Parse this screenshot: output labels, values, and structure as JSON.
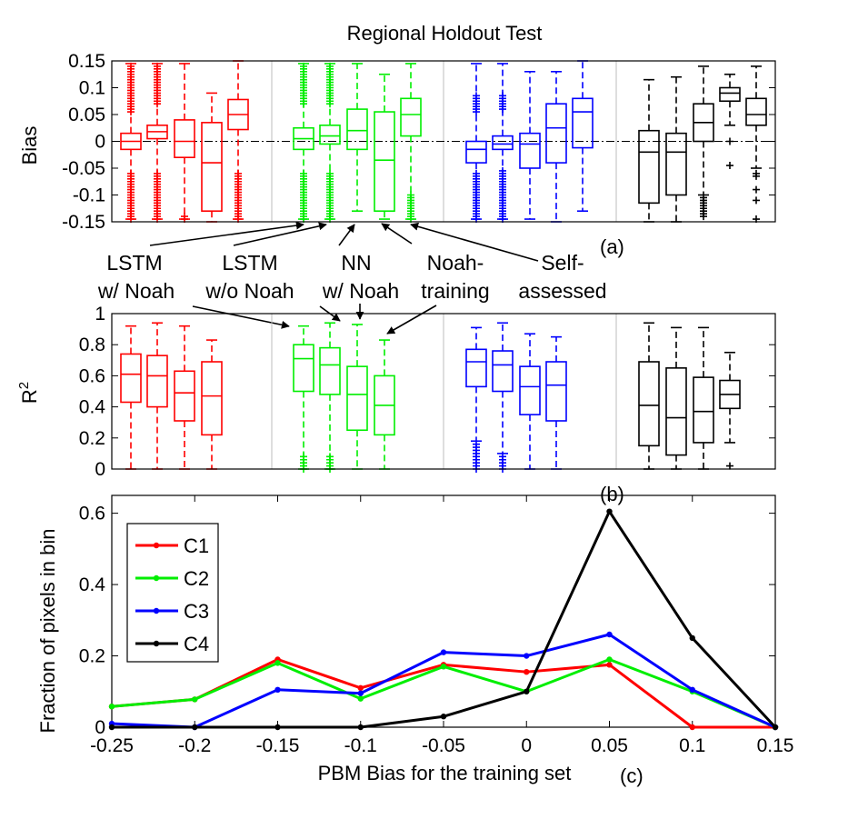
{
  "chart_data": [
    {
      "type": "box",
      "title": "Regional Holdout Test",
      "ylabel": "Bias",
      "panel_label": "(a)",
      "ylim": [
        -0.15,
        0.15
      ],
      "yticks": [
        0.15,
        0.1,
        0.05,
        0,
        -0.05,
        -0.1,
        -0.15
      ],
      "ytick_labels": [
        "0.15",
        "0.1",
        "0.05",
        "0",
        "-0.05",
        "-0.1",
        "-0.15"
      ],
      "zero_line": true,
      "groups": [
        {
          "color": "#ff0000",
          "boxes": [
            {
              "q1": -0.015,
              "median": 0.0,
              "q3": 0.015,
              "lo": -0.145,
              "hi": 0.145,
              "outliers": [
                0.14,
                0.135,
                0.13,
                0.125,
                0.12,
                0.115,
                0.11,
                0.105,
                0.1,
                0.095,
                0.09,
                0.085,
                0.08,
                0.075,
                0.07,
                0.065,
                0.06,
                0.055,
                -0.06,
                -0.065,
                -0.07,
                -0.075,
                -0.08,
                -0.085,
                -0.09,
                -0.095,
                -0.1,
                -0.105,
                -0.11,
                -0.115,
                -0.12,
                -0.125,
                -0.13,
                -0.135,
                -0.14,
                -0.145
              ]
            },
            {
              "q1": 0.005,
              "median": 0.018,
              "q3": 0.03,
              "lo": -0.145,
              "hi": 0.145,
              "outliers": [
                0.14,
                0.135,
                0.13,
                0.125,
                0.12,
                0.115,
                0.11,
                0.105,
                0.1,
                0.095,
                0.09,
                0.085,
                0.08,
                0.075,
                0.07,
                -0.06,
                -0.065,
                -0.07,
                -0.075,
                -0.08,
                -0.085,
                -0.09,
                -0.095,
                -0.1,
                -0.105,
                -0.11,
                -0.115,
                -0.12,
                -0.125,
                -0.13,
                -0.135,
                -0.14,
                -0.145
              ]
            },
            {
              "q1": -0.03,
              "median": 0.0,
              "q3": 0.04,
              "lo": -0.145,
              "hi": 0.145,
              "outliers": [
                -0.14,
                -0.145
              ]
            },
            {
              "q1": -0.13,
              "median": -0.04,
              "q3": 0.035,
              "lo": -0.15,
              "hi": 0.09,
              "outliers": []
            },
            {
              "q1": 0.022,
              "median": 0.05,
              "q3": 0.078,
              "lo": -0.145,
              "hi": 0.15,
              "outliers": [
                -0.06,
                -0.065,
                -0.07,
                -0.075,
                -0.08,
                -0.085,
                -0.09,
                -0.095,
                -0.1,
                -0.105,
                -0.11,
                -0.115,
                -0.12,
                -0.125,
                -0.13,
                -0.135,
                -0.14,
                -0.145
              ]
            }
          ]
        },
        {
          "color": "#00ee00",
          "boxes": [
            {
              "q1": -0.015,
              "median": 0.005,
              "q3": 0.025,
              "lo": -0.145,
              "hi": 0.145,
              "outliers": [
                0.14,
                0.135,
                0.13,
                0.125,
                0.12,
                0.115,
                0.11,
                0.105,
                0.1,
                0.095,
                0.09,
                0.085,
                0.08,
                0.075,
                0.07,
                -0.06,
                -0.065,
                -0.07,
                -0.075,
                -0.08,
                -0.085,
                -0.09,
                -0.095,
                -0.1,
                -0.105,
                -0.11,
                -0.115,
                -0.12,
                -0.125,
                -0.13,
                -0.135,
                -0.14,
                -0.145
              ]
            },
            {
              "q1": -0.005,
              "median": 0.01,
              "q3": 0.03,
              "lo": -0.145,
              "hi": 0.145,
              "outliers": [
                0.14,
                0.135,
                0.13,
                0.125,
                0.12,
                0.115,
                0.11,
                0.105,
                0.1,
                0.095,
                0.09,
                0.085,
                0.08,
                0.075,
                0.07,
                -0.06,
                -0.065,
                -0.07,
                -0.075,
                -0.08,
                -0.085,
                -0.09,
                -0.095,
                -0.1,
                -0.105,
                -0.11,
                -0.115,
                -0.12,
                -0.125,
                -0.13,
                -0.135,
                -0.14,
                -0.145
              ]
            },
            {
              "q1": -0.015,
              "median": 0.02,
              "q3": 0.06,
              "lo": -0.13,
              "hi": 0.145,
              "outliers": []
            },
            {
              "q1": -0.13,
              "median": -0.035,
              "q3": 0.055,
              "lo": -0.145,
              "hi": 0.125,
              "outliers": []
            },
            {
              "q1": 0.01,
              "median": 0.05,
              "q3": 0.08,
              "lo": -0.145,
              "hi": 0.145,
              "outliers": [
                -0.1,
                -0.105,
                -0.11,
                -0.115,
                -0.12,
                -0.125,
                -0.13,
                -0.135,
                -0.14,
                -0.145
              ]
            }
          ]
        },
        {
          "color": "#0000ff",
          "boxes": [
            {
              "q1": -0.04,
              "median": -0.015,
              "q3": 0.0,
              "lo": -0.145,
              "hi": 0.145,
              "outliers": [
                0.055,
                0.06,
                0.065,
                0.07,
                0.075,
                0.08,
                0.085,
                -0.06,
                -0.065,
                -0.07,
                -0.075,
                -0.08,
                -0.085,
                -0.09,
                -0.095,
                -0.1,
                -0.105,
                -0.11,
                -0.115,
                -0.12,
                -0.125,
                -0.13,
                -0.135,
                -0.14,
                -0.145
              ]
            },
            {
              "q1": -0.015,
              "median": -0.005,
              "q3": 0.01,
              "lo": -0.145,
              "hi": 0.145,
              "outliers": [
                0.06,
                0.065,
                0.07,
                0.075,
                0.08,
                0.085,
                -0.055,
                -0.06,
                -0.065,
                -0.07,
                -0.075,
                -0.08,
                -0.085,
                -0.09,
                -0.095,
                -0.1,
                -0.105,
                -0.11,
                -0.115,
                -0.12,
                -0.125,
                -0.13,
                -0.135,
                -0.14,
                -0.145
              ]
            },
            {
              "q1": -0.05,
              "median": -0.005,
              "q3": 0.015,
              "lo": -0.145,
              "hi": 0.13,
              "outliers": []
            },
            {
              "q1": -0.04,
              "median": 0.025,
              "q3": 0.07,
              "lo": -0.15,
              "hi": 0.13,
              "outliers": []
            },
            {
              "q1": -0.012,
              "median": 0.055,
              "q3": 0.08,
              "lo": -0.13,
              "hi": 0.15,
              "outliers": []
            }
          ]
        },
        {
          "color": "#000000",
          "boxes": [
            {
              "q1": -0.115,
              "median": -0.02,
              "q3": 0.02,
              "lo": -0.15,
              "hi": 0.115,
              "outliers": []
            },
            {
              "q1": -0.1,
              "median": -0.02,
              "q3": 0.015,
              "lo": -0.15,
              "hi": 0.12,
              "outliers": []
            },
            {
              "q1": 0.0,
              "median": 0.035,
              "q3": 0.07,
              "lo": -0.1,
              "hi": 0.14,
              "outliers": [
                -0.105,
                -0.11,
                -0.115,
                -0.12,
                -0.125,
                -0.13,
                -0.135,
                -0.14
              ]
            },
            {
              "q1": 0.075,
              "median": 0.09,
              "q3": 0.1,
              "lo": 0.03,
              "hi": 0.125,
              "outliers": [
                0.0,
                -0.045
              ]
            },
            {
              "q1": 0.03,
              "median": 0.05,
              "q3": 0.08,
              "lo": -0.05,
              "hi": 0.14,
              "outliers": [
                -0.06,
                -0.065,
                -0.09,
                -0.11,
                -0.145
              ]
            }
          ]
        }
      ]
    },
    {
      "type": "box",
      "ylabel": "R",
      "ylabel_superscript": "2",
      "panel_label": "(b)",
      "ylim": [
        0,
        1
      ],
      "yticks": [
        1,
        0.8,
        0.6,
        0.4,
        0.2,
        0
      ],
      "ytick_labels": [
        "1",
        "0.8",
        "0.6",
        "0.4",
        "0.2",
        "0"
      ],
      "groups": [
        {
          "color": "#ff0000",
          "boxes": [
            {
              "q1": 0.43,
              "median": 0.61,
              "q3": 0.74,
              "lo": 0.0,
              "hi": 0.92,
              "outliers": []
            },
            {
              "q1": 0.4,
              "median": 0.6,
              "q3": 0.73,
              "lo": 0.0,
              "hi": 0.94,
              "outliers": []
            },
            {
              "q1": 0.31,
              "median": 0.49,
              "q3": 0.63,
              "lo": 0.0,
              "hi": 0.92,
              "outliers": []
            },
            {
              "q1": 0.22,
              "median": 0.47,
              "q3": 0.69,
              "lo": 0.0,
              "hi": 0.83,
              "outliers": []
            }
          ]
        },
        {
          "color": "#00ee00",
          "boxes": [
            {
              "q1": 0.5,
              "median": 0.71,
              "q3": 0.8,
              "lo": 0.0,
              "hi": 0.92,
              "outliers": [
                0.0,
                0.02,
                0.04,
                0.06,
                0.08
              ]
            },
            {
              "q1": 0.48,
              "median": 0.67,
              "q3": 0.78,
              "lo": 0.0,
              "hi": 0.94,
              "outliers": [
                0.0,
                0.02,
                0.04,
                0.06,
                0.08
              ]
            },
            {
              "q1": 0.25,
              "median": 0.48,
              "q3": 0.66,
              "lo": 0.0,
              "hi": 0.93,
              "outliers": []
            },
            {
              "q1": 0.22,
              "median": 0.41,
              "q3": 0.6,
              "lo": 0.0,
              "hi": 0.83,
              "outliers": []
            }
          ]
        },
        {
          "color": "#0000ff",
          "boxes": [
            {
              "q1": 0.53,
              "median": 0.69,
              "q3": 0.77,
              "lo": 0.18,
              "hi": 0.91,
              "outliers": [
                0.0,
                0.02,
                0.04,
                0.06,
                0.08,
                0.1,
                0.12,
                0.14,
                0.16
              ]
            },
            {
              "q1": 0.5,
              "median": 0.67,
              "q3": 0.76,
              "lo": 0.1,
              "hi": 0.94,
              "outliers": [
                0.0,
                0.02,
                0.04,
                0.06,
                0.08
              ]
            },
            {
              "q1": 0.35,
              "median": 0.53,
              "q3": 0.66,
              "lo": 0.0,
              "hi": 0.87,
              "outliers": []
            },
            {
              "q1": 0.31,
              "median": 0.54,
              "q3": 0.69,
              "lo": 0.0,
              "hi": 0.85,
              "outliers": []
            }
          ]
        },
        {
          "color": "#000000",
          "boxes": [
            {
              "q1": 0.15,
              "median": 0.41,
              "q3": 0.69,
              "lo": 0.0,
              "hi": 0.94,
              "outliers": []
            },
            {
              "q1": 0.09,
              "median": 0.33,
              "q3": 0.65,
              "lo": 0.0,
              "hi": 0.91,
              "outliers": []
            },
            {
              "q1": 0.17,
              "median": 0.37,
              "q3": 0.59,
              "lo": 0.0,
              "hi": 0.91,
              "outliers": []
            },
            {
              "q1": 0.39,
              "median": 0.48,
              "q3": 0.57,
              "lo": 0.17,
              "hi": 0.75,
              "outliers": [
                0.02
              ]
            }
          ]
        }
      ]
    },
    {
      "type": "line",
      "xlabel": "PBM Bias for the training set",
      "ylabel": "Fraction of pixels in bin",
      "panel_label": "(c)",
      "xlim": [
        -0.25,
        0.15
      ],
      "ylim": [
        0,
        0.65
      ],
      "x": [
        -0.25,
        -0.2,
        -0.15,
        -0.1,
        -0.05,
        0,
        0.05,
        0.1,
        0.15
      ],
      "xtick_labels": [
        "-0.25",
        "-0.2",
        "-0.15",
        "-0.1",
        "-0.05",
        "0",
        "0.05",
        "0.1",
        "0.15"
      ],
      "yticks": [
        0,
        0.2,
        0.4,
        0.6
      ],
      "ytick_labels": [
        "0",
        "0.2",
        "0.4",
        "0.6"
      ],
      "legend_position": "top-left",
      "series": [
        {
          "name": "C1",
          "color": "#ff0000",
          "values": [
            0.058,
            0.078,
            0.19,
            0.11,
            0.175,
            0.155,
            0.175,
            0.0,
            0.0
          ]
        },
        {
          "name": "C2",
          "color": "#00ee00",
          "values": [
            0.058,
            0.078,
            0.18,
            0.08,
            0.17,
            0.1,
            0.19,
            0.1,
            0.0
          ]
        },
        {
          "name": "C3",
          "color": "#0000ff",
          "values": [
            0.01,
            0.0,
            0.105,
            0.095,
            0.21,
            0.2,
            0.26,
            0.105,
            0.0
          ]
        },
        {
          "name": "C4",
          "color": "#000000",
          "values": [
            0.0,
            0.0,
            0.0,
            0.0,
            0.03,
            0.1,
            0.605,
            0.25,
            0.0
          ]
        }
      ]
    }
  ],
  "annotations": {
    "labels": [
      {
        "line1": "LSTM",
        "line2": "w/ Noah"
      },
      {
        "line1": "LSTM",
        "line2": "w/o Noah"
      },
      {
        "line1": "NN",
        "line2": "w/ Noah"
      },
      {
        "line1": "Noah-",
        "line2": "training"
      },
      {
        "line1": "Self-",
        "line2": "assessed"
      }
    ]
  }
}
